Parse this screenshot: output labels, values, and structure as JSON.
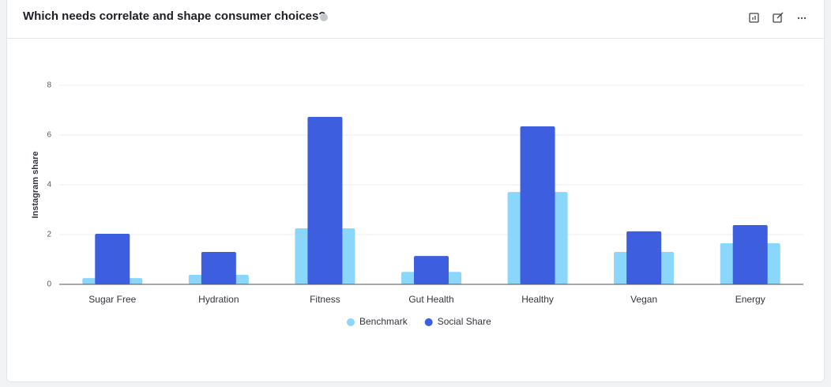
{
  "header": {
    "title": "Which needs correlate and shape consumer choices?"
  },
  "chart_data": {
    "type": "bar",
    "ylabel": "Instagram share",
    "categories": [
      "Sugar Free",
      "Hydration",
      "Fitness",
      "Gut Health",
      "Healthy",
      "Vegan",
      "Energy"
    ],
    "series": [
      {
        "name": "Benchmark",
        "color": "#8ad7fb",
        "values": [
          0.25,
          0.38,
          2.25,
          0.5,
          3.71,
          1.3,
          1.65
        ]
      },
      {
        "name": "Social Share",
        "color": "#3e5ee0",
        "values": [
          2.03,
          1.3,
          6.73,
          1.14,
          6.35,
          2.13,
          2.38
        ]
      }
    ],
    "ylim": [
      0,
      8
    ],
    "yticks": [
      0,
      2,
      4,
      6,
      8
    ],
    "grid": true
  }
}
